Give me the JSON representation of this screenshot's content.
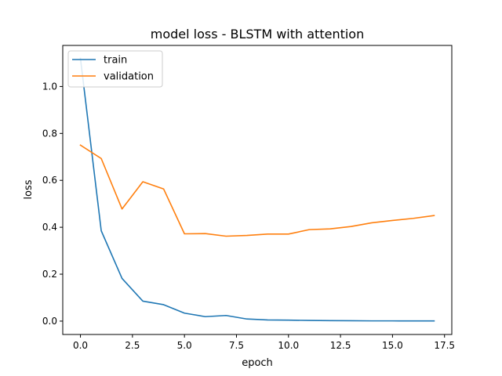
{
  "chart_data": {
    "type": "line",
    "title": "model loss - BLSTM with attention",
    "xlabel": "epoch",
    "ylabel": "loss",
    "xlim": [
      -0.85,
      17.85
    ],
    "ylim": [
      -0.057,
      1.175
    ],
    "xticks": [
      "0.0",
      "2.5",
      "5.0",
      "7.5",
      "10.0",
      "12.5",
      "15.0",
      "17.5"
    ],
    "xtick_values": [
      0,
      2.5,
      5,
      7.5,
      10,
      12.5,
      15,
      17.5
    ],
    "yticks": [
      "0.0",
      "0.2",
      "0.4",
      "0.6",
      "0.8",
      "1.0"
    ],
    "ytick_values": [
      0,
      0.2,
      0.4,
      0.6,
      0.8,
      1.0
    ],
    "x": [
      0,
      1,
      2,
      3,
      4,
      5,
      6,
      7,
      8,
      9,
      10,
      11,
      12,
      13,
      14,
      15,
      16,
      17
    ],
    "series": [
      {
        "name": "train",
        "color": "#1f77b4",
        "values": [
          1.12,
          0.385,
          0.182,
          0.085,
          0.07,
          0.034,
          0.019,
          0.024,
          0.009,
          0.005,
          0.004,
          0.003,
          0.002,
          0.0015,
          0.001,
          0.001,
          0.0008,
          0.0008
        ]
      },
      {
        "name": "validation",
        "color": "#ff7f0e",
        "values": [
          0.75,
          0.693,
          0.478,
          0.594,
          0.563,
          0.372,
          0.373,
          0.362,
          0.365,
          0.371,
          0.371,
          0.39,
          0.393,
          0.403,
          0.419,
          0.429,
          0.438,
          0.45
        ]
      }
    ],
    "grid": false,
    "legend_position": "top-left"
  }
}
